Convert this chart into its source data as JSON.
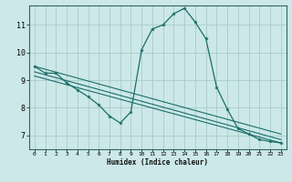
{
  "bg_color": "#cce8e8",
  "grid_color": "#aacccc",
  "line_color": "#1a6e6a",
  "xlabel": "Humidex (Indice chaleur)",
  "xlim": [
    -0.5,
    23.5
  ],
  "ylim": [
    6.5,
    11.7
  ],
  "yticks": [
    7,
    8,
    9,
    10,
    11
  ],
  "xticks": [
    0,
    1,
    2,
    3,
    4,
    5,
    6,
    7,
    8,
    9,
    10,
    11,
    12,
    13,
    14,
    15,
    16,
    17,
    18,
    19,
    20,
    21,
    22,
    23
  ],
  "main_x": [
    0,
    1,
    2,
    3,
    4,
    5,
    6,
    7,
    8,
    9,
    10,
    11,
    12,
    13,
    14,
    15,
    16,
    17,
    18,
    19,
    20,
    21,
    22,
    23
  ],
  "main_y": [
    9.5,
    9.25,
    9.25,
    8.9,
    8.65,
    8.4,
    8.1,
    7.7,
    7.45,
    7.85,
    10.1,
    10.85,
    11.0,
    11.4,
    11.6,
    11.1,
    10.5,
    8.75,
    7.95,
    7.25,
    7.05,
    6.85,
    6.78,
    6.73
  ],
  "line2_x": [
    0,
    23
  ],
  "line2_y": [
    9.5,
    7.05
  ],
  "line3_x": [
    0,
    23
  ],
  "line3_y": [
    9.3,
    6.85
  ],
  "line4_x": [
    0,
    23
  ],
  "line4_y": [
    9.15,
    6.73
  ]
}
